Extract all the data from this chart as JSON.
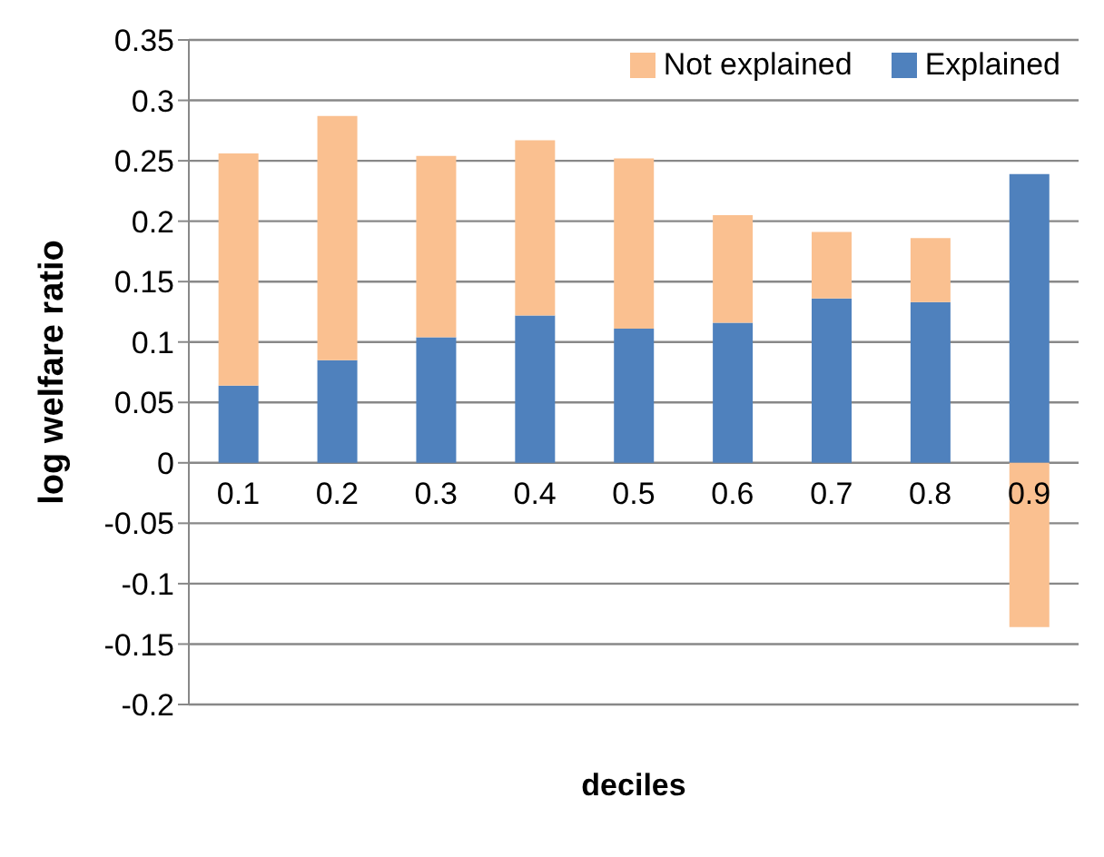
{
  "chart_data": {
    "type": "bar",
    "stacked": true,
    "xlabel": "deciles",
    "ylabel": "log  welfare ratio",
    "categories": [
      "0.1",
      "0.2",
      "0.3",
      "0.4",
      "0.5",
      "0.6",
      "0.7",
      "0.8",
      "0.9"
    ],
    "series": [
      {
        "name": "Explained",
        "color": "#4f81bd",
        "values": [
          0.064,
          0.085,
          0.104,
          0.122,
          0.111,
          0.116,
          0.136,
          0.133,
          0.239
        ]
      },
      {
        "name": "Not explained",
        "color": "#fac090",
        "values": [
          0.192,
          0.202,
          0.15,
          0.145,
          0.141,
          0.089,
          0.055,
          0.053,
          -0.136
        ]
      }
    ],
    "ylim": [
      -0.2,
      0.35
    ],
    "yticks": [
      -0.2,
      -0.15,
      -0.1,
      -0.05,
      0,
      0.05,
      0.1,
      0.15,
      0.2,
      0.25,
      0.3,
      0.35
    ],
    "grid": "y",
    "legend": "top right"
  }
}
